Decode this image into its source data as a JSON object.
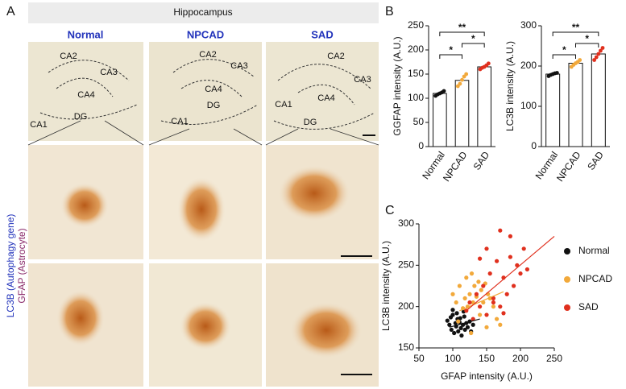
{
  "panel_labels": [
    "A",
    "B",
    "C"
  ],
  "panel_a": {
    "header": "Hippocampus",
    "columns": [
      "Normal",
      "NPCAD",
      "SAD"
    ],
    "side_label": [
      "LC3B (Autophagy gene)",
      "GFAP (Astrocyte)"
    ],
    "regions": [
      "CA2",
      "CA3",
      "CA4",
      "CA1",
      "DG"
    ]
  },
  "chart_data": [
    {
      "type": "bar",
      "ylabel": "GGFAP intensity (A.U.)",
      "categories": [
        "Normal",
        "NPCAD",
        "SAD"
      ],
      "values": [
        110,
        137,
        165
      ],
      "color": "#ffffff",
      "points": [
        [
          105,
          108,
          110,
          112,
          115
        ],
        [
          125,
          130,
          138,
          145,
          150
        ],
        [
          160,
          163,
          165,
          168,
          172
        ]
      ],
      "point_colors": [
        "#111111",
        "#f2a93b",
        "#e0301e"
      ],
      "ylim": [
        0,
        250
      ],
      "yticks": [
        0,
        50,
        100,
        150,
        200,
        250
      ],
      "annotations": [
        {
          "text": "**",
          "between": [
            0,
            2
          ]
        },
        {
          "text": "*",
          "between": [
            0,
            1
          ]
        },
        {
          "text": "*",
          "between": [
            1,
            2
          ]
        }
      ]
    },
    {
      "type": "bar",
      "ylabel": "LC3B intensity (A.U.)",
      "categories": [
        "Normal",
        "NPCAD",
        "SAD"
      ],
      "values": [
        180,
        207,
        230
      ],
      "color": "#ffffff",
      "points": [
        [
          175,
          178,
          180,
          182,
          183
        ],
        [
          198,
          203,
          207,
          210,
          215
        ],
        [
          215,
          222,
          230,
          238,
          245
        ]
      ],
      "point_colors": [
        "#111111",
        "#f2a93b",
        "#e0301e"
      ],
      "ylim": [
        0,
        300
      ],
      "yticks": [
        0,
        100,
        200,
        300
      ],
      "annotations": [
        {
          "text": "**",
          "between": [
            0,
            2
          ]
        },
        {
          "text": "*",
          "between": [
            0,
            1
          ]
        },
        {
          "text": "*",
          "between": [
            1,
            2
          ]
        }
      ]
    },
    {
      "type": "scatter",
      "xlabel": "GFAP intensity (A.U.)",
      "ylabel": "LC3B intensity (A.U.)",
      "xlim": [
        50,
        250
      ],
      "xticks": [
        50,
        100,
        150,
        200,
        250
      ],
      "ylim": [
        150,
        300
      ],
      "yticks": [
        150,
        200,
        250,
        300
      ],
      "legend": "right",
      "series": [
        {
          "name": "Normal",
          "color": "#111111",
          "x": [
            92,
            95,
            98,
            100,
            102,
            104,
            105,
            107,
            108,
            110,
            112,
            113,
            115,
            117,
            118,
            120,
            122,
            125,
            127,
            130,
            100,
            106,
            111,
            116,
            97
          ],
          "values": [
            183,
            178,
            172,
            190,
            168,
            180,
            176,
            185,
            170,
            181,
            174,
            165,
            178,
            188,
            172,
            180,
            175,
            182,
            170,
            178,
            196,
            192,
            186,
            194,
            187
          ],
          "fit": {
            "x": [
              95,
              140
            ],
            "y": [
              175,
              185
            ]
          }
        },
        {
          "name": "NPCAD",
          "color": "#f2a93b",
          "x": [
            100,
            105,
            110,
            115,
            118,
            120,
            122,
            125,
            128,
            130,
            132,
            135,
            138,
            140,
            142,
            145,
            148,
            150,
            152,
            155,
            160,
            165,
            170,
            108,
            127
          ],
          "values": [
            215,
            205,
            225,
            198,
            210,
            235,
            200,
            215,
            240,
            205,
            225,
            212,
            230,
            190,
            220,
            205,
            228,
            175,
            215,
            210,
            200,
            185,
            178,
            182,
            168
          ],
          "fit": {
            "x": [
              110,
              175
            ],
            "y": [
              195,
              218
            ]
          }
        },
        {
          "name": "SAD",
          "color": "#e0301e",
          "x": [
            120,
            125,
            130,
            135,
            140,
            145,
            150,
            155,
            160,
            165,
            170,
            175,
            180,
            185,
            190,
            195,
            200,
            205,
            210,
            140,
            150,
            160,
            170,
            175,
            185
          ],
          "values": [
            195,
            205,
            185,
            215,
            200,
            225,
            190,
            240,
            210,
            255,
            200,
            235,
            215,
            260,
            225,
            250,
            240,
            270,
            245,
            258,
            270,
            205,
            292,
            192,
            285
          ],
          "fit": {
            "x": [
              120,
              250
            ],
            "y": [
              195,
              285
            ]
          }
        }
      ]
    }
  ]
}
